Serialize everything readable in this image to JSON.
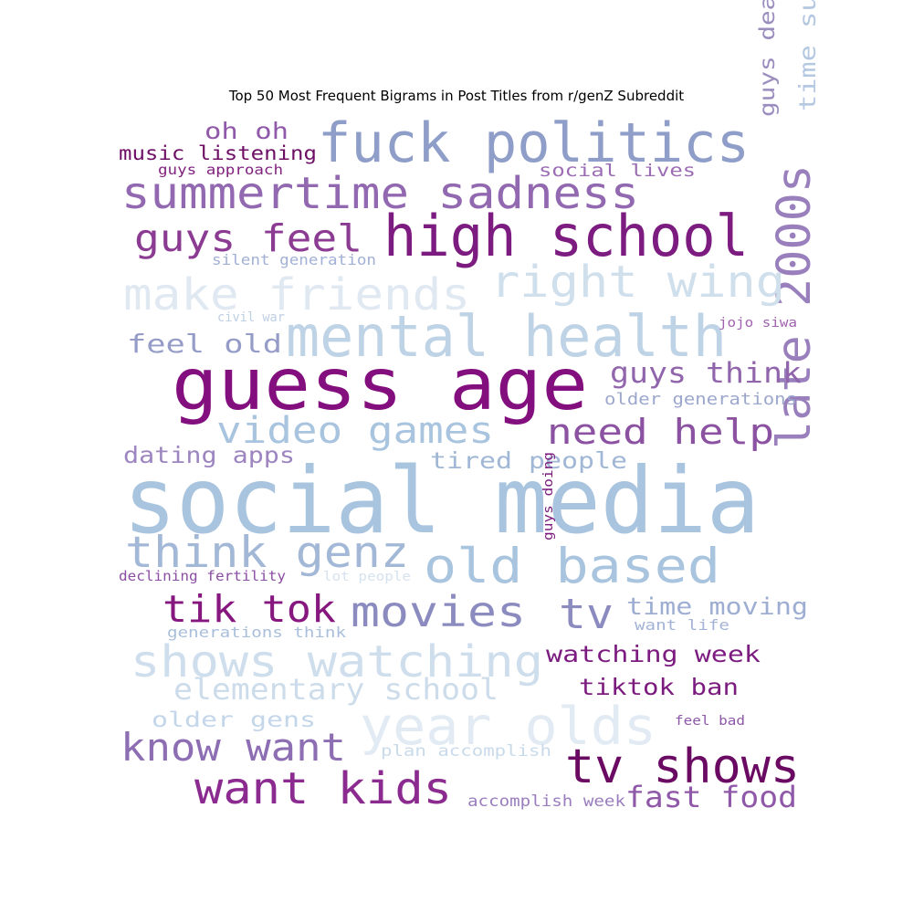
{
  "chart_data": {
    "type": "wordcloud",
    "title": "Top 50 Most Frequent Bigrams in Post Titles from r/genZ Subreddit",
    "words": [
      {
        "text": "social media",
        "color": "#a9c4de"
      },
      {
        "text": "guess age",
        "color": "#830f7e"
      },
      {
        "text": "mental health",
        "color": "#bfd3e6"
      },
      {
        "text": "high school",
        "color": "#7d1c80"
      },
      {
        "text": "fuck politics",
        "color": "#8f9ec8"
      },
      {
        "text": "year olds",
        "color": "#e2ebf4"
      },
      {
        "text": "tv shows",
        "color": "#6a0a63"
      },
      {
        "text": "old based",
        "color": "#a9c4de"
      },
      {
        "text": "late 2000s",
        "color": "#9980bd"
      },
      {
        "text": "summertime sadness",
        "color": "#9268b0"
      },
      {
        "text": "shows watching",
        "color": "#cfdeec"
      },
      {
        "text": "want kids",
        "color": "#8b2a8f"
      },
      {
        "text": "right wing",
        "color": "#d0dfec"
      },
      {
        "text": "make friends",
        "color": "#e0e9f2"
      },
      {
        "text": "think genz",
        "color": "#a2b8d6"
      },
      {
        "text": "know want",
        "color": "#8d6eb3"
      },
      {
        "text": "movies",
        "color": "#8c8bc0"
      },
      {
        "text": "video games",
        "color": "#a9c4de"
      },
      {
        "text": "tik tok",
        "color": "#86177f"
      },
      {
        "text": "guys feel",
        "color": "#8b3b92"
      },
      {
        "text": "tv",
        "color": "#8c8bc0"
      },
      {
        "text": "need help",
        "color": "#8c52a2"
      },
      {
        "text": "fast food",
        "color": "#8f58a8"
      },
      {
        "text": "elementary school",
        "color": "#cddcea"
      },
      {
        "text": "guys think",
        "color": "#9065ab"
      },
      {
        "text": "watching week",
        "color": "#7d1c80"
      },
      {
        "text": "time summertime",
        "color": "#b4c8e1"
      },
      {
        "text": "tiktok ban",
        "color": "#7b1b7e"
      },
      {
        "text": "feel old",
        "color": "#959cc7"
      },
      {
        "text": "time moving",
        "color": "#9daed2"
      },
      {
        "text": "tired people",
        "color": "#a0b7d6"
      },
      {
        "text": "dating apps",
        "color": "#9d85c0"
      },
      {
        "text": "oh oh",
        "color": "#9059a9"
      },
      {
        "text": "guys deal",
        "color": "#9b8ebf"
      },
      {
        "text": "older gens",
        "color": "#c4d6ea"
      },
      {
        "text": "music listening",
        "color": "#6e0f66"
      },
      {
        "text": "social lives",
        "color": "#9b6cb3"
      },
      {
        "text": "older generations",
        "color": "#9ba7cd"
      },
      {
        "text": "accomplish week",
        "color": "#9a7dbd"
      },
      {
        "text": "plan accomplish",
        "color": "#c9daea"
      },
      {
        "text": "silent generation",
        "color": "#a1b0d5"
      },
      {
        "text": "generations think",
        "color": "#a9bedb"
      },
      {
        "text": "declining fertility",
        "color": "#8b4ea3"
      },
      {
        "text": "want life",
        "color": "#a3b2d6"
      },
      {
        "text": "guys approach",
        "color": "#80237f"
      },
      {
        "text": "jojo siwa",
        "color": "#a262b0"
      },
      {
        "text": "lot people",
        "color": "#d6e2ee"
      },
      {
        "text": "civil war",
        "color": "#bfcfe4"
      },
      {
        "text": "guys doing",
        "color": "#7a1a7c"
      },
      {
        "text": "feel bad",
        "color": "#8e58a8"
      }
    ]
  }
}
